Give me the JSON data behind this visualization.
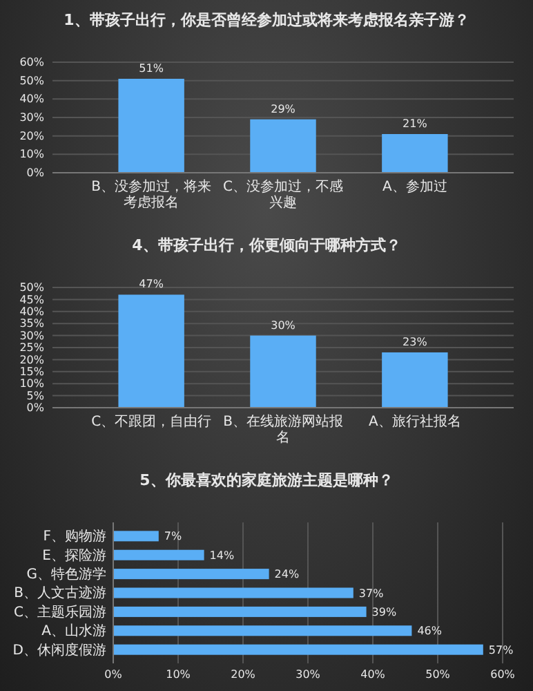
{
  "chart_data": [
    {
      "type": "bar",
      "title": "1、带孩子出行，你是否曾经参加过或将来考虑报名亲子游？",
      "categories": [
        "B、没参加过，将来考虑报名",
        "C、没参加过，不感兴趣",
        "A、参加过"
      ],
      "values": [
        51,
        29,
        21
      ],
      "color": "#5aaef5",
      "value_labels": [
        "51%",
        "29%",
        "21%"
      ],
      "ylim": [
        0,
        60
      ],
      "yticks": [
        {
          "value": 0,
          "label": "0%"
        },
        {
          "value": 10,
          "label": "10%"
        },
        {
          "value": 20,
          "label": "20%"
        },
        {
          "value": 30,
          "label": "30%"
        },
        {
          "value": 40,
          "label": "40%"
        },
        {
          "value": 50,
          "label": "50%"
        },
        {
          "value": 60,
          "label": "60%"
        }
      ],
      "grid": "y"
    },
    {
      "type": "bar",
      "title": "4、带孩子出行，你更倾向于哪种方式？",
      "categories": [
        "C、不跟团，自由行",
        "B、在线旅游网站报名",
        "A、旅行社报名"
      ],
      "values": [
        47,
        30,
        23
      ],
      "color": "#5aaef5",
      "value_labels": [
        "47%",
        "30%",
        "23%"
      ],
      "ylim": [
        0,
        50
      ],
      "yticks": [
        {
          "value": 0,
          "label": "0%"
        },
        {
          "value": 5,
          "label": "5%"
        },
        {
          "value": 10,
          "label": "10%"
        },
        {
          "value": 15,
          "label": "15%"
        },
        {
          "value": 20,
          "label": "20%"
        },
        {
          "value": 25,
          "label": "25%"
        },
        {
          "value": 30,
          "label": "30%"
        },
        {
          "value": 35,
          "label": "35%"
        },
        {
          "value": 40,
          "label": "40%"
        },
        {
          "value": 45,
          "label": "45%"
        },
        {
          "value": 50,
          "label": "50%"
        }
      ],
      "grid": "y"
    },
    {
      "type": "bar",
      "orientation": "horizontal",
      "title": "5、你最喜欢的家庭旅游主题是哪种？",
      "categories": [
        "F、购物游",
        "E、探险游",
        "G、特色游学",
        "B、人文古迹游",
        "C、主题乐园游",
        "A、山水游",
        "D、休闲度假游"
      ],
      "values": [
        7,
        14,
        24,
        37,
        39,
        46,
        57
      ],
      "color": "#5aaef5",
      "value_labels": [
        "7%",
        "14%",
        "24%",
        "37%",
        "39%",
        "46%",
        "57%"
      ],
      "xlim": [
        0,
        60
      ],
      "xticks": [
        {
          "value": 0,
          "label": "0%"
        },
        {
          "value": 10,
          "label": "10%"
        },
        {
          "value": 20,
          "label": "20%"
        },
        {
          "value": 30,
          "label": "30%"
        },
        {
          "value": 40,
          "label": "40%"
        },
        {
          "value": 50,
          "label": "50%"
        },
        {
          "value": 60,
          "label": "60%"
        }
      ],
      "grid": "x"
    }
  ]
}
